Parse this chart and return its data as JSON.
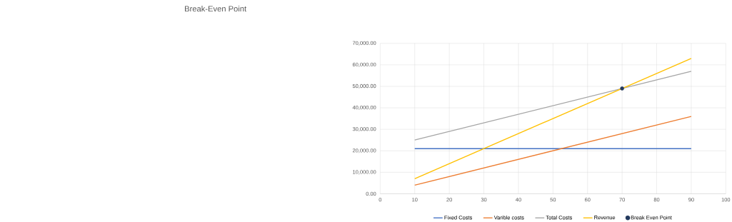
{
  "chart_data": {
    "type": "line",
    "title": "Break-Even Point",
    "xlim": [
      0,
      100
    ],
    "xticks": [
      0,
      10,
      20,
      30,
      40,
      50,
      60,
      70,
      80,
      90,
      100
    ],
    "ylim": [
      0,
      70000
    ],
    "yticks": [
      {
        "value": 0,
        "label": "0.00"
      },
      {
        "value": 10000,
        "label": "10,000.00"
      },
      {
        "value": 20000,
        "label": "20,000.00"
      },
      {
        "value": 30000,
        "label": "30,000.00"
      },
      {
        "value": 40000,
        "label": "40,000.00"
      },
      {
        "value": 50000,
        "label": "50,000.00"
      },
      {
        "value": 60000,
        "label": "60,000.00"
      },
      {
        "value": 70000,
        "label": "70,000.00"
      }
    ],
    "grid": true,
    "legend": "bottom",
    "marker": "none",
    "line_style": "solid",
    "series": [
      {
        "name": "Fixed Costs",
        "color": "#4472c4",
        "x": [
          10,
          90
        ],
        "values": [
          21000,
          21000
        ]
      },
      {
        "name": "Varible costs",
        "color": "#ed7d31",
        "x": [
          10,
          90
        ],
        "values": [
          4000,
          36000
        ]
      },
      {
        "name": "Total Costs",
        "color": "#a5a5a5",
        "x": [
          10,
          90
        ],
        "values": [
          25000,
          57000
        ]
      },
      {
        "name": "Revenue",
        "color": "#ffc000",
        "x": [
          10,
          90
        ],
        "values": [
          7000,
          63000
        ]
      },
      {
        "name": "Break Even Point",
        "type": "scatter",
        "marker": "circle",
        "color": "#243a5e",
        "x": [
          70
        ],
        "values": [
          49000
        ]
      }
    ]
  }
}
